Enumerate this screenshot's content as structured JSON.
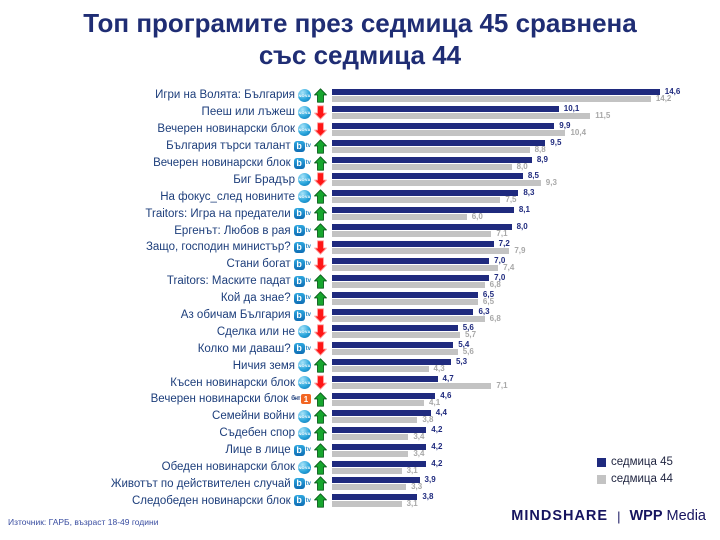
{
  "title": {
    "line1": "Топ програмите през седмица 45 сравнена",
    "line2": "със седмица 44"
  },
  "chart_data": {
    "type": "bar",
    "orientation": "horizontal",
    "title": "Топ програмите през седмица 45 сравнена със седмица 44",
    "xlim": [
      0,
      15.5
    ],
    "grid": false,
    "legend_position": "bottom-right",
    "value_decimal_separator": ",",
    "categories": [
      "Игри на Волята: България",
      "Пееш или лъжеш",
      "Вечерен новинарски блок",
      "България търси талант",
      "Вечерен новинарски блок",
      "Биг Брадър",
      "На фокус_след новините",
      "Traitors: Игра на предатели",
      "Ергенът: Любов в рая",
      "Защо, господин министър?",
      "Стани богат",
      "Traitors: Маските падат",
      "Кой да знае?",
      "Аз обичам България",
      "Сделка или не",
      "Колко ми даваш?",
      "Ничия земя",
      "Късен новинарски блок",
      "Вечерен новинарски блок",
      "Семейни войни",
      "Съдебен спор",
      "Лице в лице",
      "Обеден новинарски блок",
      "Животът по действителен случай",
      "Следобеден новинарски блок"
    ],
    "channels": [
      "nova",
      "nova",
      "nova",
      "btv",
      "btv",
      "nova",
      "nova",
      "btv",
      "btv",
      "btv",
      "btv",
      "btv",
      "btv",
      "btv",
      "nova",
      "btv",
      "nova",
      "nova",
      "bnt1",
      "nova",
      "nova",
      "btv",
      "nova",
      "btv",
      "btv"
    ],
    "trend": [
      "up",
      "down",
      "down",
      "up",
      "up",
      "down",
      "up",
      "up",
      "up",
      "down",
      "down",
      "up",
      "up",
      "down",
      "down",
      "down",
      "up",
      "down",
      "up",
      "up",
      "up",
      "up",
      "up",
      "up",
      "up"
    ],
    "series": [
      {
        "name": "седмица 45",
        "color": "#1F2A7E",
        "values": [
          14.6,
          10.1,
          9.9,
          9.5,
          8.9,
          8.5,
          8.3,
          8.1,
          8.0,
          7.2,
          7.0,
          7.0,
          6.5,
          6.3,
          5.6,
          5.4,
          5.3,
          4.7,
          4.6,
          4.4,
          4.2,
          4.2,
          4.2,
          3.9,
          3.8
        ]
      },
      {
        "name": "седмица 44",
        "color": "#C3C3C3",
        "values": [
          14.2,
          11.5,
          10.4,
          8.8,
          8.0,
          9.3,
          7.5,
          6.0,
          7.1,
          7.9,
          7.4,
          6.8,
          6.5,
          6.8,
          5.7,
          5.6,
          4.3,
          7.1,
          4.1,
          3.8,
          3.4,
          3.4,
          3.1,
          3.3,
          3.1
        ]
      }
    ],
    "trend_colors": {
      "up": "#17A62E",
      "down": "#FF1616"
    }
  },
  "channel_icons": {
    "nova": {
      "text": "NOVA",
      "color": "#1A9CD8"
    },
    "btv": {
      "text": "b",
      "suffix": "tv",
      "color": "#1793D1"
    },
    "bnt1": {
      "text": "бнт",
      "suffix": "1",
      "color": "#F26522"
    }
  },
  "footer": {
    "source": "Източник: ГАРБ, възраст 18-49 години",
    "brand_mindshare": "MINDSHARE",
    "brand_sep": "|",
    "brand_wpp": "WPP",
    "brand_media": "Media"
  }
}
